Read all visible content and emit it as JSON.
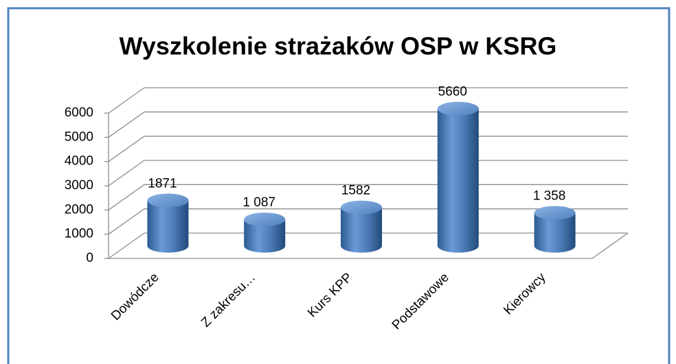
{
  "chart_data": {
    "type": "bar3d",
    "title": "Wyszkolenie strażaków OSP w KSRG",
    "categories": [
      "Dowódcze",
      "Z zakresu…",
      "Kurs KPP",
      "Podstawowe",
      "Kierowcy"
    ],
    "values": [
      1871,
      1087,
      1582,
      5660,
      1358
    ],
    "value_labels": [
      "1871",
      "1 087",
      "1582",
      "5660",
      "1 358"
    ],
    "color": "#4f81bd",
    "ylim": [
      0,
      6000
    ],
    "yticks": [
      0,
      1000,
      2000,
      3000,
      4000,
      5000,
      6000
    ],
    "grid": true
  }
}
